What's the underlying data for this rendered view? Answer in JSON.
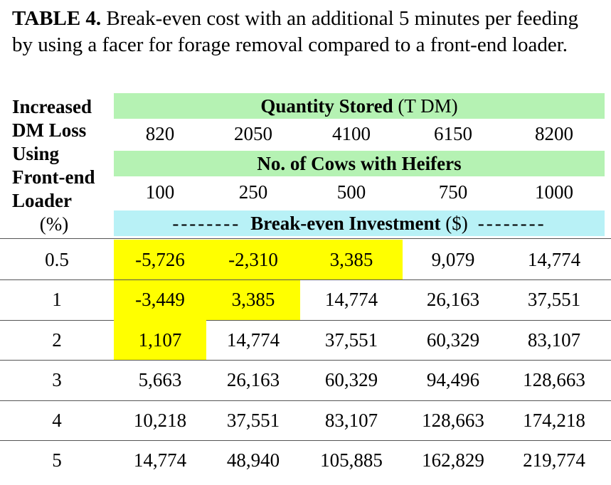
{
  "caption": {
    "label": "TABLE 4.",
    "text": "Break-even cost with an additional 5 minutes per feeding by using a facer for forage removal compared to a front-end loader."
  },
  "stub": {
    "line1": "Increased",
    "line2": "DM Loss",
    "line3": "Using",
    "line4": "Front-end",
    "line5": "Loader",
    "unit": "(%)"
  },
  "header": {
    "quantity_bold": "Quantity Stored",
    "quantity_unit": "(T DM)",
    "quantities": [
      "820",
      "2050",
      "4100",
      "6150",
      "8200"
    ],
    "cows_label": "No. of Cows with Heifers",
    "cows": [
      "100",
      "250",
      "500",
      "750",
      "1000"
    ],
    "dashes": "--------",
    "investment_bold": "Break-even Investment",
    "investment_unit": "($)"
  },
  "colors": {
    "green_band": "#b5f2b3",
    "cyan_band": "#b8f1f6",
    "highlight": "#ffff00"
  },
  "rows": [
    {
      "loss": "0.5",
      "values": [
        "-5,726",
        "-2,310",
        "3,385",
        "9,079",
        "14,774"
      ],
      "highlighted": [
        true,
        true,
        true,
        false,
        false
      ]
    },
    {
      "loss": "1",
      "values": [
        "-3,449",
        "3,385",
        "14,774",
        "26,163",
        "37,551"
      ],
      "highlighted": [
        true,
        true,
        false,
        false,
        false
      ]
    },
    {
      "loss": "2",
      "values": [
        "1,107",
        "14,774",
        "37,551",
        "60,329",
        "83,107"
      ],
      "highlighted": [
        true,
        false,
        false,
        false,
        false
      ]
    },
    {
      "loss": "3",
      "values": [
        "5,663",
        "26,163",
        "60,329",
        "94,496",
        "128,663"
      ],
      "highlighted": [
        false,
        false,
        false,
        false,
        false
      ]
    },
    {
      "loss": "4",
      "values": [
        "10,218",
        "37,551",
        "83,107",
        "128,663",
        "174,218"
      ],
      "highlighted": [
        false,
        false,
        false,
        false,
        false
      ]
    },
    {
      "loss": "5",
      "values": [
        "14,774",
        "48,940",
        "105,885",
        "162,829",
        "219,774"
      ],
      "highlighted": [
        false,
        false,
        false,
        false,
        false
      ]
    }
  ]
}
